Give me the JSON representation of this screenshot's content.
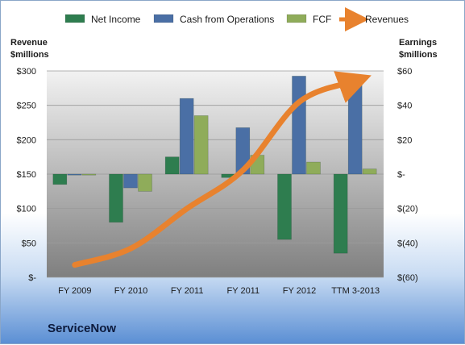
{
  "company": "ServiceNow",
  "chart_data": {
    "type": "bar+line",
    "categories": [
      "FY 2009",
      "FY 2010",
      "FY 2011",
      "FY 2011",
      "FY 2012",
      "TTM 3-2013"
    ],
    "left_axis": {
      "label_lines": [
        "Revenue",
        "$millions"
      ],
      "range": [
        0,
        300
      ],
      "ticks": [
        0,
        50,
        100,
        150,
        200,
        250,
        300
      ],
      "tick_labels": [
        "$-",
        "$50",
        "$100",
        "$150",
        "$200",
        "$250",
        "$300"
      ]
    },
    "right_axis": {
      "label_lines": [
        "Earnings",
        "$millions"
      ],
      "range": [
        -60,
        60
      ],
      "ticks": [
        -60,
        -40,
        -20,
        0,
        20,
        40,
        60
      ],
      "tick_labels": [
        "$(60)",
        "$(40)",
        "$(20)",
        "$-",
        "$20",
        "$40",
        "$60"
      ]
    },
    "series": [
      {
        "name": "Net Income",
        "kind": "bar",
        "axis": "right",
        "color": "#2e7d4f",
        "values": [
          -6,
          -28,
          10,
          -2,
          -38,
          -46
        ]
      },
      {
        "name": "Cash from Operations",
        "kind": "bar",
        "axis": "right",
        "color": "#4a6fa5",
        "values": [
          0,
          -8,
          44,
          27,
          57,
          56
        ]
      },
      {
        "name": "FCF",
        "kind": "bar",
        "axis": "right",
        "color": "#8fac5a",
        "values": [
          0,
          -10,
          34,
          11,
          7,
          3
        ]
      },
      {
        "name": "Revenues",
        "kind": "line",
        "axis": "left",
        "color": "#e8822e",
        "values": [
          18,
          42,
          100,
          156,
          255,
          285
        ]
      }
    ],
    "grid": true,
    "legend_position": "top"
  }
}
